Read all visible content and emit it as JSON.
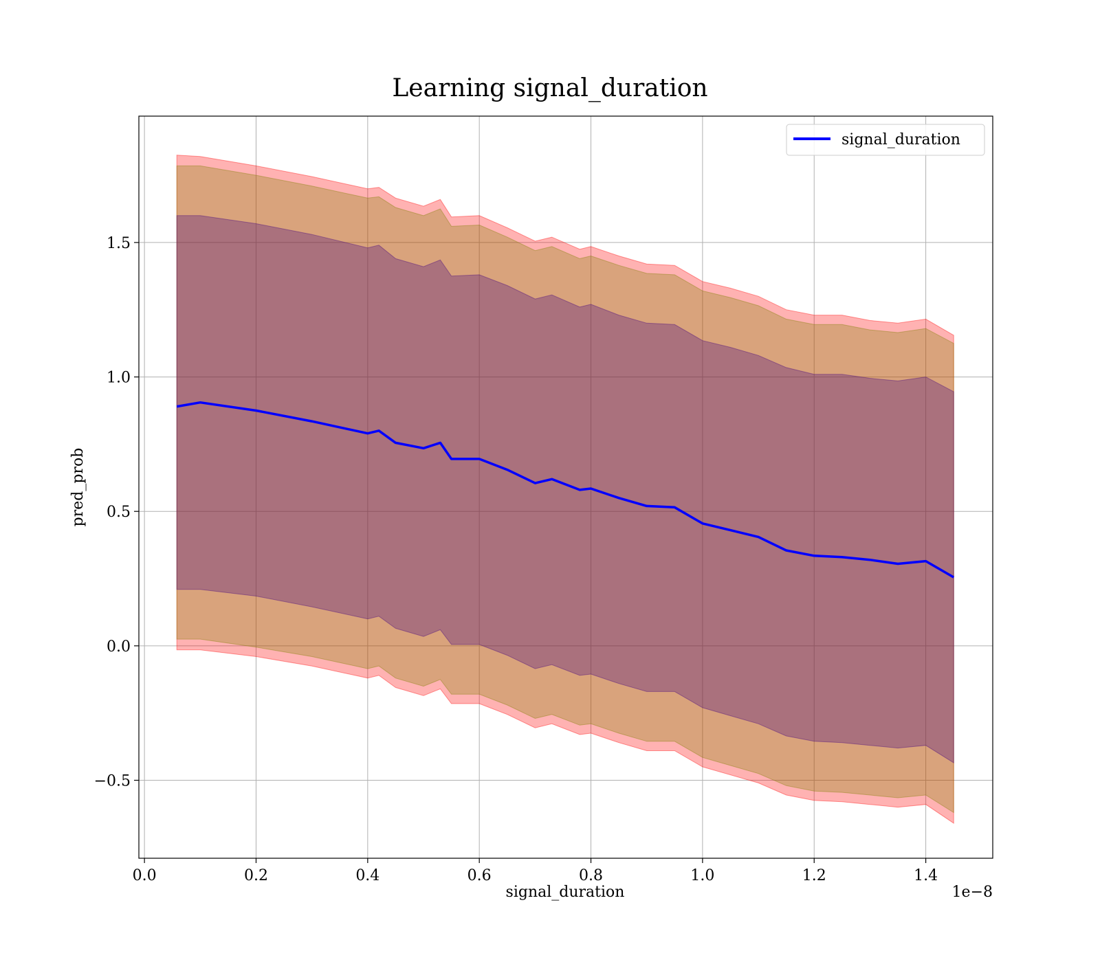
{
  "chart_data": {
    "type": "line",
    "title": "Learning signal_duration",
    "xlabel": "signal_duration",
    "ylabel": "pred_prob",
    "x_offset_text": "1e−8",
    "xlim": [
      -0.01,
      1.52
    ],
    "ylim": [
      -0.79,
      1.97
    ],
    "x_ticks": [
      0.0,
      0.2,
      0.4,
      0.6,
      0.8,
      1.0,
      1.2,
      1.4
    ],
    "x_tick_labels": [
      "0.0",
      "0.2",
      "0.4",
      "0.6",
      "0.8",
      "1.0",
      "1.2",
      "1.4"
    ],
    "y_ticks": [
      -0.5,
      0.0,
      0.5,
      1.0,
      1.5
    ],
    "y_tick_labels": [
      "−0.5",
      "0.0",
      "0.5",
      "1.0",
      "1.5"
    ],
    "grid": true,
    "legend_position": "top-right",
    "x": [
      0.058,
      0.1,
      0.2,
      0.3,
      0.4,
      0.42,
      0.45,
      0.5,
      0.53,
      0.55,
      0.6,
      0.65,
      0.7,
      0.73,
      0.78,
      0.8,
      0.85,
      0.9,
      0.95,
      1.0,
      1.05,
      1.1,
      1.15,
      1.2,
      1.25,
      1.3,
      1.35,
      1.4,
      1.45
    ],
    "series": [
      {
        "name": "signal_duration",
        "color": "#0000ff",
        "values": [
          0.89,
          0.905,
          0.875,
          0.835,
          0.79,
          0.8,
          0.755,
          0.735,
          0.755,
          0.695,
          0.695,
          0.655,
          0.605,
          0.62,
          0.58,
          0.585,
          0.55,
          0.52,
          0.515,
          0.455,
          0.43,
          0.405,
          0.355,
          0.335,
          0.33,
          0.32,
          0.305,
          0.315,
          0.255
        ]
      }
    ],
    "bands": [
      {
        "color": "#ff0000",
        "opacity": 0.3,
        "upper": [
          1.825,
          1.82,
          1.785,
          1.745,
          1.7,
          1.705,
          1.665,
          1.635,
          1.66,
          1.595,
          1.6,
          1.555,
          1.505,
          1.52,
          1.475,
          1.485,
          1.45,
          1.42,
          1.415,
          1.355,
          1.33,
          1.3,
          1.25,
          1.23,
          1.23,
          1.21,
          1.2,
          1.215,
          1.155
        ],
        "lower": [
          -0.015,
          -0.015,
          -0.04,
          -0.075,
          -0.12,
          -0.11,
          -0.155,
          -0.185,
          -0.16,
          -0.215,
          -0.215,
          -0.255,
          -0.305,
          -0.29,
          -0.33,
          -0.325,
          -0.36,
          -0.39,
          -0.39,
          -0.45,
          -0.48,
          -0.51,
          -0.555,
          -0.575,
          -0.58,
          -0.59,
          -0.6,
          -0.59,
          -0.66
        ]
      },
      {
        "color": "#808000",
        "opacity": 0.3,
        "upper": [
          1.785,
          1.785,
          1.75,
          1.71,
          1.665,
          1.67,
          1.63,
          1.6,
          1.625,
          1.56,
          1.565,
          1.52,
          1.47,
          1.485,
          1.44,
          1.45,
          1.415,
          1.385,
          1.38,
          1.32,
          1.295,
          1.265,
          1.215,
          1.195,
          1.195,
          1.175,
          1.165,
          1.18,
          1.125
        ],
        "lower": [
          0.025,
          0.025,
          -0.005,
          -0.04,
          -0.085,
          -0.075,
          -0.12,
          -0.15,
          -0.125,
          -0.18,
          -0.18,
          -0.22,
          -0.27,
          -0.255,
          -0.295,
          -0.29,
          -0.325,
          -0.355,
          -0.355,
          -0.415,
          -0.445,
          -0.475,
          -0.52,
          -0.54,
          -0.545,
          -0.555,
          -0.565,
          -0.555,
          -0.62
        ]
      },
      {
        "color": "#400080",
        "opacity": 0.3,
        "upper": [
          1.6,
          1.6,
          1.57,
          1.53,
          1.48,
          1.49,
          1.44,
          1.41,
          1.435,
          1.375,
          1.38,
          1.34,
          1.29,
          1.305,
          1.26,
          1.27,
          1.23,
          1.2,
          1.195,
          1.135,
          1.11,
          1.08,
          1.035,
          1.01,
          1.01,
          0.995,
          0.985,
          1.0,
          0.945
        ],
        "lower": [
          0.21,
          0.21,
          0.185,
          0.145,
          0.1,
          0.11,
          0.065,
          0.035,
          0.06,
          0.005,
          0.005,
          -0.035,
          -0.085,
          -0.07,
          -0.11,
          -0.105,
          -0.14,
          -0.17,
          -0.17,
          -0.23,
          -0.26,
          -0.29,
          -0.335,
          -0.355,
          -0.36,
          -0.37,
          -0.38,
          -0.37,
          -0.435
        ]
      }
    ]
  }
}
